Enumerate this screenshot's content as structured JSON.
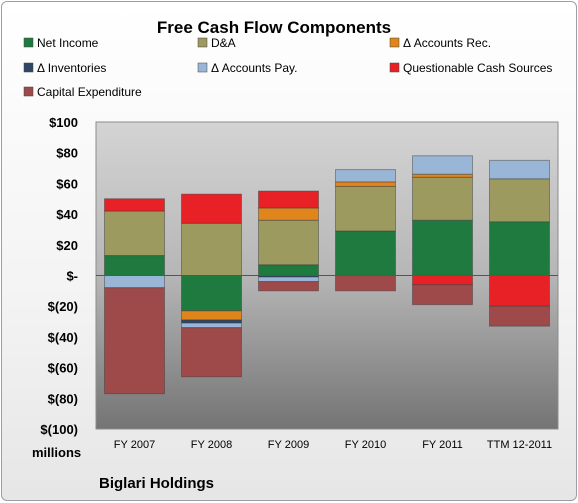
{
  "chart_data": {
    "type": "bar",
    "stacked": true,
    "title": "Free Cash Flow Components",
    "units_label": "millions",
    "company": "Biglari Holdings",
    "ylim": [
      -100,
      100
    ],
    "y_tick_values": [
      100,
      80,
      60,
      40,
      20,
      0,
      -20,
      -40,
      -60,
      -80,
      -100
    ],
    "y_tick_labels": [
      "$100",
      "$80",
      "$60",
      "$40",
      "$20",
      "$-",
      "$(20)",
      "$(40)",
      "$(60)",
      "$(80)",
      "$(100)"
    ],
    "categories": [
      "FY 2007",
      "FY 2008",
      "FY 2009",
      "FY 2010",
      "FY 2011",
      "TTM 12-2011"
    ],
    "legend_position": "top",
    "grid": false,
    "series": [
      {
        "name": "Net Income",
        "color": "#1f7a3f",
        "values": [
          13,
          -23,
          7,
          29,
          36,
          35
        ]
      },
      {
        "name": "D&A",
        "color": "#9c9a5e",
        "values": [
          29,
          34,
          29,
          29,
          28,
          28
        ]
      },
      {
        "name": "Δ Accounts Rec.",
        "color": "#e0841c",
        "values": [
          0,
          -6,
          8,
          3,
          2,
          0
        ]
      },
      {
        "name": "Δ Inventories",
        "color": "#2e4664",
        "values": [
          0,
          -2,
          -1,
          0,
          0,
          0
        ]
      },
      {
        "name": "Δ Accounts Pay.",
        "color": "#9ab6d6",
        "values": [
          -8,
          -3,
          -3,
          8,
          12,
          12
        ]
      },
      {
        "name": "Questionable Cash Sources",
        "color": "#e82127",
        "values": [
          8,
          19,
          11,
          0,
          -6,
          -20
        ]
      },
      {
        "name": "Capital Expenditure",
        "color": "#9e4a4a",
        "values": [
          -69,
          -32,
          -6,
          -10,
          -13,
          -13
        ]
      }
    ]
  }
}
